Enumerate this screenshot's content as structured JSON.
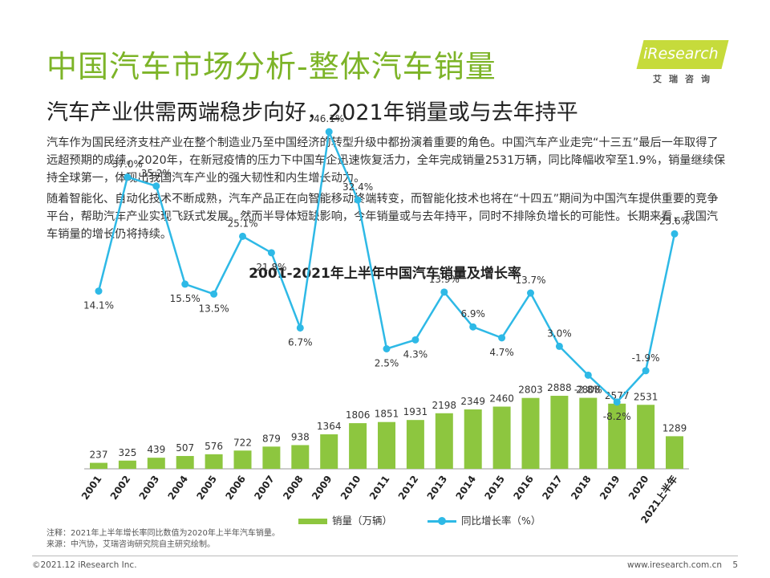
{
  "header": {
    "title": "中国汽车市场分析-整体汽车销量",
    "subtitle": "汽车产业供需两端稳步向好，2021年销量或与去年持平"
  },
  "logo": {
    "text": "iResearch",
    "sub": "艾瑞咨询"
  },
  "body": {
    "paragraph1": "汽车作为国民经济支柱产业在整个制造业乃至中国经济的转型升级中都扮演着重要的角色。中国汽车产业走完“十三五”最后一年取得了远超预期的成绩。2020年，在新冠疫情的压力下中国车企迅速恢复活力，全年完成销量2531万辆，同比降幅收窄至1.9%，销量继续保持全球第一，体现出我国汽车产业的强大韧性和内生增长动力。",
    "paragraph2": "随着智能化、自动化技术不断成熟，汽车产品正在向智能移动终端转变，而智能化技术也将在“十四五”期间为中国汽车提供重要的竞争平台，帮助汽车产业实现飞跃式发展。然而半导体短缺影响，今年销量或与去年持平，同时不排除负增长的可能性。长期来看，我国汽车销量的增长仍将持续。"
  },
  "chart_data": {
    "type": "bar",
    "title": "2001-2021年上半年中国汽车销量及增长率",
    "categories": [
      "2001",
      "2002",
      "2003",
      "2004",
      "2005",
      "2006",
      "2007",
      "2008",
      "2009",
      "2010",
      "2011",
      "2012",
      "2013",
      "2014",
      "2015",
      "2016",
      "2017",
      "2018",
      "2019",
      "2020",
      "2021上半年"
    ],
    "series": [
      {
        "name": "销量（万辆）",
        "type": "bar",
        "values": [
          237,
          325,
          439,
          507,
          576,
          722,
          879,
          938,
          1364,
          1806,
          1851,
          1931,
          2198,
          2349,
          2460,
          2803,
          2888,
          2808,
          2577,
          2531,
          1289
        ],
        "labels": [
          "237",
          "325",
          "439",
          "507",
          "576",
          "722",
          "879",
          "938",
          "1364",
          "1806",
          "1851",
          "1931",
          "2198",
          "2349",
          "2460",
          "2803",
          "2888",
          "2808",
          "2577",
          "2531",
          "1289"
        ]
      },
      {
        "name": "同比增长率（%）",
        "type": "line",
        "values": [
          14.1,
          37.0,
          35.2,
          15.5,
          13.5,
          25.1,
          21.8,
          6.7,
          46.1,
          32.4,
          2.5,
          4.3,
          13.9,
          6.9,
          4.7,
          13.7,
          3.0,
          -2.8,
          -8.2,
          -1.9,
          25.6
        ],
        "labels": [
          "14.1%",
          "37.0%",
          "35.2%",
          "15.5%",
          "13.5%",
          "25.1%",
          "21.8%",
          "6.7%",
          "46.1%",
          "32.4%",
          "2.5%",
          "4.3%",
          "13.9%",
          "6.9%",
          "4.7%",
          "13.7%",
          "3.0%",
          "-2.8%",
          "-8.2%",
          "-1.9%",
          "25.6%"
        ],
        "label_positions": [
          "below",
          "above",
          "above",
          "below",
          "below",
          "above",
          "below",
          "below",
          "above",
          "above",
          "below",
          "below",
          "above",
          "above",
          "below",
          "above",
          "above",
          "below",
          "below",
          "above",
          "above"
        ]
      }
    ],
    "legend_position": "bottom",
    "grid": false
  },
  "colors": {
    "title": "#7DB428",
    "bar": "#8DC63F",
    "line": "#2EB9E6"
  },
  "notes": {
    "line1": "注释：2021年上半年增长率同比数值为2020年上半年汽车销量。",
    "line2": "来源：中汽协，艾瑞咨询研究院自主研究绘制。"
  },
  "footer": {
    "copyright": "©2021.12 iResearch Inc.",
    "website": "www.iresearch.com.cn",
    "page": "5"
  }
}
